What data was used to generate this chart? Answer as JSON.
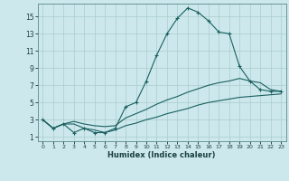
{
  "xlabel": "Humidex (Indice chaleur)",
  "bg_color": "#cce8ec",
  "grid_color": "#aacccc",
  "line_color": "#1a6060",
  "xlim": [
    -0.5,
    23.5
  ],
  "ylim": [
    0.5,
    16.5
  ],
  "xticks": [
    0,
    1,
    2,
    3,
    4,
    5,
    6,
    7,
    8,
    9,
    10,
    11,
    12,
    13,
    14,
    15,
    16,
    17,
    18,
    19,
    20,
    21,
    22,
    23
  ],
  "yticks": [
    1,
    3,
    5,
    7,
    9,
    11,
    13,
    15
  ],
  "line1_x": [
    0,
    1,
    2,
    3,
    4,
    5,
    6,
    7,
    8,
    9,
    10,
    11,
    12,
    13,
    14,
    15,
    16,
    17,
    18,
    19,
    20,
    21,
    22,
    23
  ],
  "line1_y": [
    3.0,
    2.0,
    2.5,
    1.5,
    2.0,
    1.5,
    1.5,
    2.0,
    4.5,
    5.0,
    7.5,
    10.5,
    13.0,
    14.8,
    16.0,
    15.5,
    14.5,
    13.2,
    13.0,
    9.2,
    7.5,
    6.5,
    6.3,
    6.3
  ],
  "line2_x": [
    0,
    1,
    2,
    3,
    4,
    5,
    6,
    7,
    8,
    9,
    10,
    11,
    12,
    13,
    14,
    15,
    16,
    17,
    18,
    19,
    20,
    21,
    22,
    23
  ],
  "line2_y": [
    3.0,
    2.0,
    2.5,
    2.8,
    2.5,
    2.3,
    2.2,
    2.3,
    3.2,
    3.7,
    4.2,
    4.8,
    5.3,
    5.7,
    6.2,
    6.6,
    7.0,
    7.3,
    7.5,
    7.8,
    7.5,
    7.3,
    6.5,
    6.3
  ],
  "line3_x": [
    0,
    1,
    2,
    3,
    4,
    5,
    6,
    7,
    8,
    9,
    10,
    11,
    12,
    13,
    14,
    15,
    16,
    17,
    18,
    19,
    20,
    21,
    22,
    23
  ],
  "line3_y": [
    3.0,
    2.0,
    2.5,
    2.5,
    2.0,
    1.8,
    1.5,
    1.8,
    2.3,
    2.6,
    3.0,
    3.3,
    3.7,
    4.0,
    4.3,
    4.7,
    5.0,
    5.2,
    5.4,
    5.6,
    5.7,
    5.8,
    5.9,
    6.0
  ]
}
